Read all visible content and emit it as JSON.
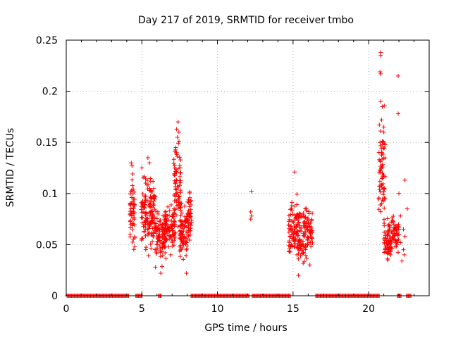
{
  "chart_data": {
    "type": "scatter",
    "title": "Day 217 of 2019, SRMTID for receiver tmbo",
    "xlabel": "GPS time / hours",
    "ylabel": "SRMTID / TECUs",
    "xlim": [
      0,
      24
    ],
    "ylim": [
      0,
      0.25
    ],
    "x_ticks": [
      0,
      5,
      10,
      15,
      20
    ],
    "y_ticks": [
      0,
      0.05,
      0.1,
      0.15,
      0.2,
      0.25
    ],
    "y_tick_labels": [
      "0",
      "0.05",
      "0.1",
      "0.15",
      "0.2",
      "0.25"
    ],
    "grid": true,
    "marker": "+",
    "color": "#ff0000",
    "zero_segments": [
      [
        0.05,
        4.15
      ],
      [
        4.6,
        5.05
      ],
      [
        6.1,
        6.3
      ],
      [
        8.25,
        12.1
      ],
      [
        12.3,
        14.85
      ],
      [
        16.5,
        20.75
      ],
      [
        21.9,
        22.15
      ],
      [
        22.5,
        22.8
      ]
    ],
    "clusters": [
      {
        "x": [
          4.2,
          4.55
        ],
        "y": [
          0.035,
          0.13
        ],
        "n": 55
      },
      {
        "x": [
          4.95,
          5.6
        ],
        "y": [
          0.035,
          0.125
        ],
        "n": 90
      },
      {
        "x": [
          5.5,
          5.95
        ],
        "y": [
          0.028,
          0.135
        ],
        "n": 70
      },
      {
        "x": [
          5.9,
          6.6
        ],
        "y": [
          0.022,
          0.09
        ],
        "n": 85
      },
      {
        "x": [
          6.5,
          7.2
        ],
        "y": [
          0.035,
          0.1
        ],
        "n": 90
      },
      {
        "x": [
          7.1,
          7.6
        ],
        "y": [
          0.04,
          0.17
        ],
        "n": 80
      },
      {
        "x": [
          7.5,
          8.0
        ],
        "y": [
          0.022,
          0.1
        ],
        "n": 75
      },
      {
        "x": [
          7.95,
          8.3
        ],
        "y": [
          0.04,
          0.11
        ],
        "n": 50
      },
      {
        "x": [
          14.7,
          15.3
        ],
        "y": [
          0.03,
          0.105
        ],
        "n": 70
      },
      {
        "x": [
          15.2,
          15.8
        ],
        "y": [
          0.02,
          0.1
        ],
        "n": 80
      },
      {
        "x": [
          15.7,
          16.3
        ],
        "y": [
          0.027,
          0.1
        ],
        "n": 75
      },
      {
        "x": [
          20.65,
          21.1
        ],
        "y": [
          0.04,
          0.19
        ],
        "n": 70
      },
      {
        "x": [
          21.0,
          21.5
        ],
        "y": [
          0.028,
          0.08
        ],
        "n": 70
      },
      {
        "x": [
          21.5,
          22.0
        ],
        "y": [
          0.03,
          0.09
        ],
        "n": 50
      }
    ],
    "points": [
      [
        12.25,
        0.102
      ],
      [
        12.2,
        0.082
      ],
      [
        12.25,
        0.078
      ],
      [
        12.2,
        0.075
      ],
      [
        20.8,
        0.238
      ],
      [
        20.8,
        0.235
      ],
      [
        20.75,
        0.219
      ],
      [
        20.8,
        0.217
      ],
      [
        21.95,
        0.215
      ],
      [
        21.95,
        0.178
      ],
      [
        20.8,
        0.19
      ],
      [
        20.9,
        0.185
      ],
      [
        20.85,
        0.172
      ],
      [
        21.0,
        0.165
      ],
      [
        21.0,
        0.16
      ],
      [
        20.75,
        0.15
      ],
      [
        20.85,
        0.14
      ],
      [
        20.9,
        0.12
      ],
      [
        21.0,
        0.118
      ],
      [
        7.4,
        0.17
      ],
      [
        7.3,
        0.163
      ],
      [
        7.45,
        0.16
      ],
      [
        7.35,
        0.155
      ],
      [
        7.25,
        0.145
      ],
      [
        7.3,
        0.14
      ],
      [
        5.0,
        0.125
      ],
      [
        5.4,
        0.135
      ],
      [
        5.5,
        0.13
      ],
      [
        4.3,
        0.13
      ],
      [
        4.35,
        0.127
      ],
      [
        15.1,
        0.121
      ],
      [
        22.4,
        0.113
      ],
      [
        22.55,
        0.085
      ],
      [
        22.3,
        0.065
      ],
      [
        22.4,
        0.058
      ],
      [
        22.3,
        0.045
      ],
      [
        22.35,
        0.04
      ],
      [
        22.0,
        0.1
      ],
      [
        22.1,
        0.078
      ],
      [
        22.0,
        0.06
      ],
      [
        22.1,
        0.052
      ],
      [
        22.2,
        0.034
      ],
      [
        15.35,
        0.02
      ],
      [
        6.25,
        0.022
      ],
      [
        7.95,
        0.022
      ],
      [
        5.9,
        0.028
      ]
    ]
  }
}
